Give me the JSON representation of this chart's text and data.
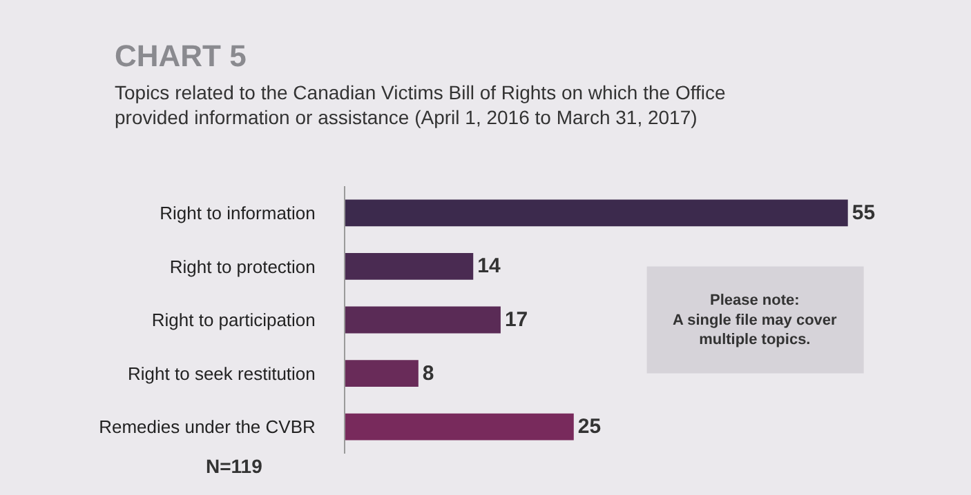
{
  "chart_data": {
    "type": "bar",
    "orientation": "horizontal",
    "title": "CHART 5",
    "subtitle": "Topics related to the Canadian Victims Bill of Rights on which the Office provided information or assistance (April 1, 2016 to March 31, 2017)",
    "categories": [
      "Right to information",
      "Right to protection",
      "Right to participation",
      "Right to seek restitution",
      "Remedies under the CVBR"
    ],
    "values": [
      55,
      14,
      17,
      8,
      25
    ],
    "colors": [
      "#3c2a4d",
      "#4a2b52",
      "#5a2b56",
      "#692b59",
      "#782a5c"
    ],
    "data_labels": true,
    "grid": false,
    "legend": false,
    "annotations": [
      "Please note:\nA single file may cover\nmultiple topics.",
      "N=119"
    ]
  }
}
